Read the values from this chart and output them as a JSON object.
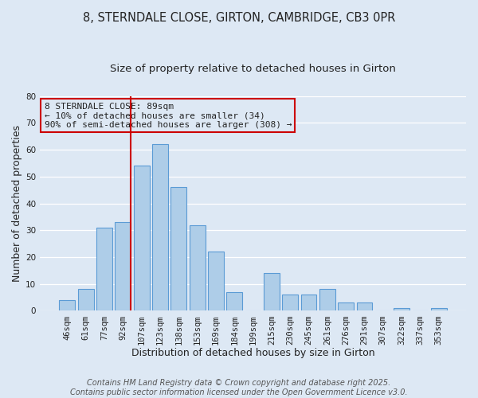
{
  "title": "8, STERNDALE CLOSE, GIRTON, CAMBRIDGE, CB3 0PR",
  "subtitle": "Size of property relative to detached houses in Girton",
  "xlabel": "Distribution of detached houses by size in Girton",
  "ylabel": "Number of detached properties",
  "categories": [
    "46sqm",
    "61sqm",
    "77sqm",
    "92sqm",
    "107sqm",
    "123sqm",
    "138sqm",
    "153sqm",
    "169sqm",
    "184sqm",
    "199sqm",
    "215sqm",
    "230sqm",
    "245sqm",
    "261sqm",
    "276sqm",
    "291sqm",
    "307sqm",
    "322sqm",
    "337sqm",
    "353sqm"
  ],
  "values": [
    4,
    8,
    31,
    33,
    54,
    62,
    46,
    32,
    22,
    7,
    0,
    14,
    6,
    6,
    8,
    3,
    3,
    0,
    1,
    0,
    1
  ],
  "bar_color": "#aecde8",
  "bar_edge_color": "#5b9bd5",
  "vline_color": "#cc0000",
  "vline_x_index": 3,
  "ylim": [
    0,
    80
  ],
  "yticks": [
    0,
    10,
    20,
    30,
    40,
    50,
    60,
    70,
    80
  ],
  "annotation_line1": "8 STERNDALE CLOSE: 89sqm",
  "annotation_line2": "← 10% of detached houses are smaller (34)",
  "annotation_line3": "90% of semi-detached houses are larger (308) →",
  "annotation_box_edge": "#cc0000",
  "background_color": "#dde8f4",
  "grid_color": "#ffffff",
  "footer_line1": "Contains HM Land Registry data © Crown copyright and database right 2025.",
  "footer_line2": "Contains public sector information licensed under the Open Government Licence v3.0.",
  "title_fontsize": 10.5,
  "subtitle_fontsize": 9.5,
  "axis_label_fontsize": 9,
  "tick_fontsize": 7.5,
  "annotation_fontsize": 8,
  "footer_fontsize": 7
}
